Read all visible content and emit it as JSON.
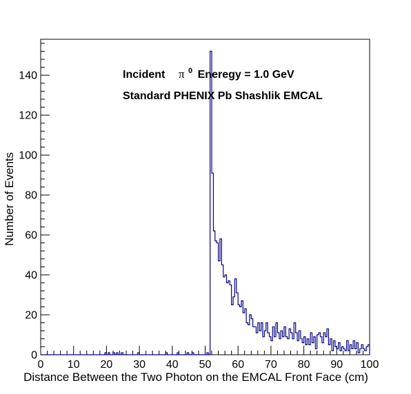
{
  "chart_data": {
    "type": "bar",
    "title": "",
    "xlabel": "Distance Between the Two Photon on the EMCAL Front Face (cm)",
    "ylabel": "Number of Events",
    "xlim": [
      0,
      100
    ],
    "ylim": [
      0,
      158
    ],
    "bin_width": 0.5,
    "x_ticks": [
      0,
      10,
      20,
      30,
      40,
      50,
      60,
      70,
      80,
      90,
      100
    ],
    "y_ticks": [
      0,
      20,
      40,
      60,
      80,
      100,
      120,
      140
    ],
    "annotations": {
      "line1_prefix": "Incident",
      "line1_pi": "π",
      "line1_sup": "0",
      "line1_suffix": "Eneregy = 1.0 GeV",
      "line2": "Standard PHENIX Pb Shashlik EMCAL"
    },
    "grid": false,
    "line_color": "#000080",
    "series": [
      {
        "bins": [
          [
            19.5,
            1
          ],
          [
            20.5,
            1
          ],
          [
            22.0,
            1
          ],
          [
            23.0,
            1
          ],
          [
            24.5,
            1
          ],
          [
            29.5,
            1
          ],
          [
            38.0,
            1
          ],
          [
            41.5,
            1
          ],
          [
            44.5,
            1
          ],
          [
            46.0,
            1
          ],
          [
            50.5,
            1
          ],
          [
            51.5,
            152
          ],
          [
            52.0,
            91
          ],
          [
            52.5,
            62
          ],
          [
            53.0,
            57
          ],
          [
            53.5,
            56
          ],
          [
            54.0,
            47
          ],
          [
            54.5,
            58
          ],
          [
            55.0,
            45
          ],
          [
            55.5,
            39
          ],
          [
            56.0,
            40
          ],
          [
            56.5,
            36
          ],
          [
            57.0,
            37
          ],
          [
            57.5,
            35
          ],
          [
            58.0,
            25
          ],
          [
            58.5,
            29
          ],
          [
            59.0,
            38
          ],
          [
            59.5,
            31
          ],
          [
            60.0,
            25
          ],
          [
            60.5,
            24
          ],
          [
            61.0,
            27
          ],
          [
            61.5,
            21
          ],
          [
            62.0,
            23
          ],
          [
            62.5,
            16
          ],
          [
            63.0,
            15
          ],
          [
            63.5,
            20
          ],
          [
            64.0,
            18
          ],
          [
            64.5,
            14
          ],
          [
            65.0,
            14
          ],
          [
            65.5,
            11
          ],
          [
            66.0,
            16
          ],
          [
            66.5,
            12
          ],
          [
            67.0,
            16
          ],
          [
            67.5,
            9
          ],
          [
            68.0,
            12
          ],
          [
            68.5,
            16
          ],
          [
            69.0,
            11
          ],
          [
            69.5,
            9
          ],
          [
            70.0,
            7
          ],
          [
            70.5,
            14
          ],
          [
            71.0,
            9
          ],
          [
            71.5,
            16
          ],
          [
            72.0,
            11
          ],
          [
            72.5,
            8
          ],
          [
            73.0,
            12
          ],
          [
            73.5,
            9
          ],
          [
            74.0,
            14
          ],
          [
            74.5,
            9
          ],
          [
            75.0,
            8
          ],
          [
            75.5,
            13
          ],
          [
            76.0,
            11
          ],
          [
            76.5,
            8
          ],
          [
            77.0,
            16
          ],
          [
            77.5,
            11
          ],
          [
            78.0,
            7
          ],
          [
            78.5,
            12
          ],
          [
            79.0,
            8
          ],
          [
            79.5,
            6
          ],
          [
            80.0,
            9
          ],
          [
            80.5,
            5
          ],
          [
            81.0,
            8
          ],
          [
            81.5,
            5
          ],
          [
            82.0,
            11
          ],
          [
            82.5,
            6
          ],
          [
            83.0,
            9
          ],
          [
            83.5,
            3
          ],
          [
            84.0,
            10
          ],
          [
            84.5,
            11
          ],
          [
            85.0,
            9
          ],
          [
            85.5,
            6
          ],
          [
            86.0,
            11
          ],
          [
            86.5,
            9
          ],
          [
            87.0,
            13
          ],
          [
            87.5,
            5
          ],
          [
            88.0,
            8
          ],
          [
            88.5,
            2
          ],
          [
            89.0,
            7
          ],
          [
            89.5,
            4
          ],
          [
            90.0,
            3
          ],
          [
            90.5,
            6
          ],
          [
            91.0,
            2
          ],
          [
            91.5,
            4
          ],
          [
            92.0,
            3
          ],
          [
            92.5,
            2
          ],
          [
            93.0,
            7
          ],
          [
            93.5,
            2
          ],
          [
            94.0,
            5
          ],
          [
            94.5,
            3
          ],
          [
            95.0,
            7
          ],
          [
            95.5,
            3
          ],
          [
            96.0,
            6
          ],
          [
            96.5,
            1
          ],
          [
            97.0,
            3
          ],
          [
            97.5,
            5
          ],
          [
            98.0,
            3
          ],
          [
            98.5,
            2
          ],
          [
            99.0,
            4
          ],
          [
            99.5,
            5
          ]
        ]
      }
    ]
  }
}
